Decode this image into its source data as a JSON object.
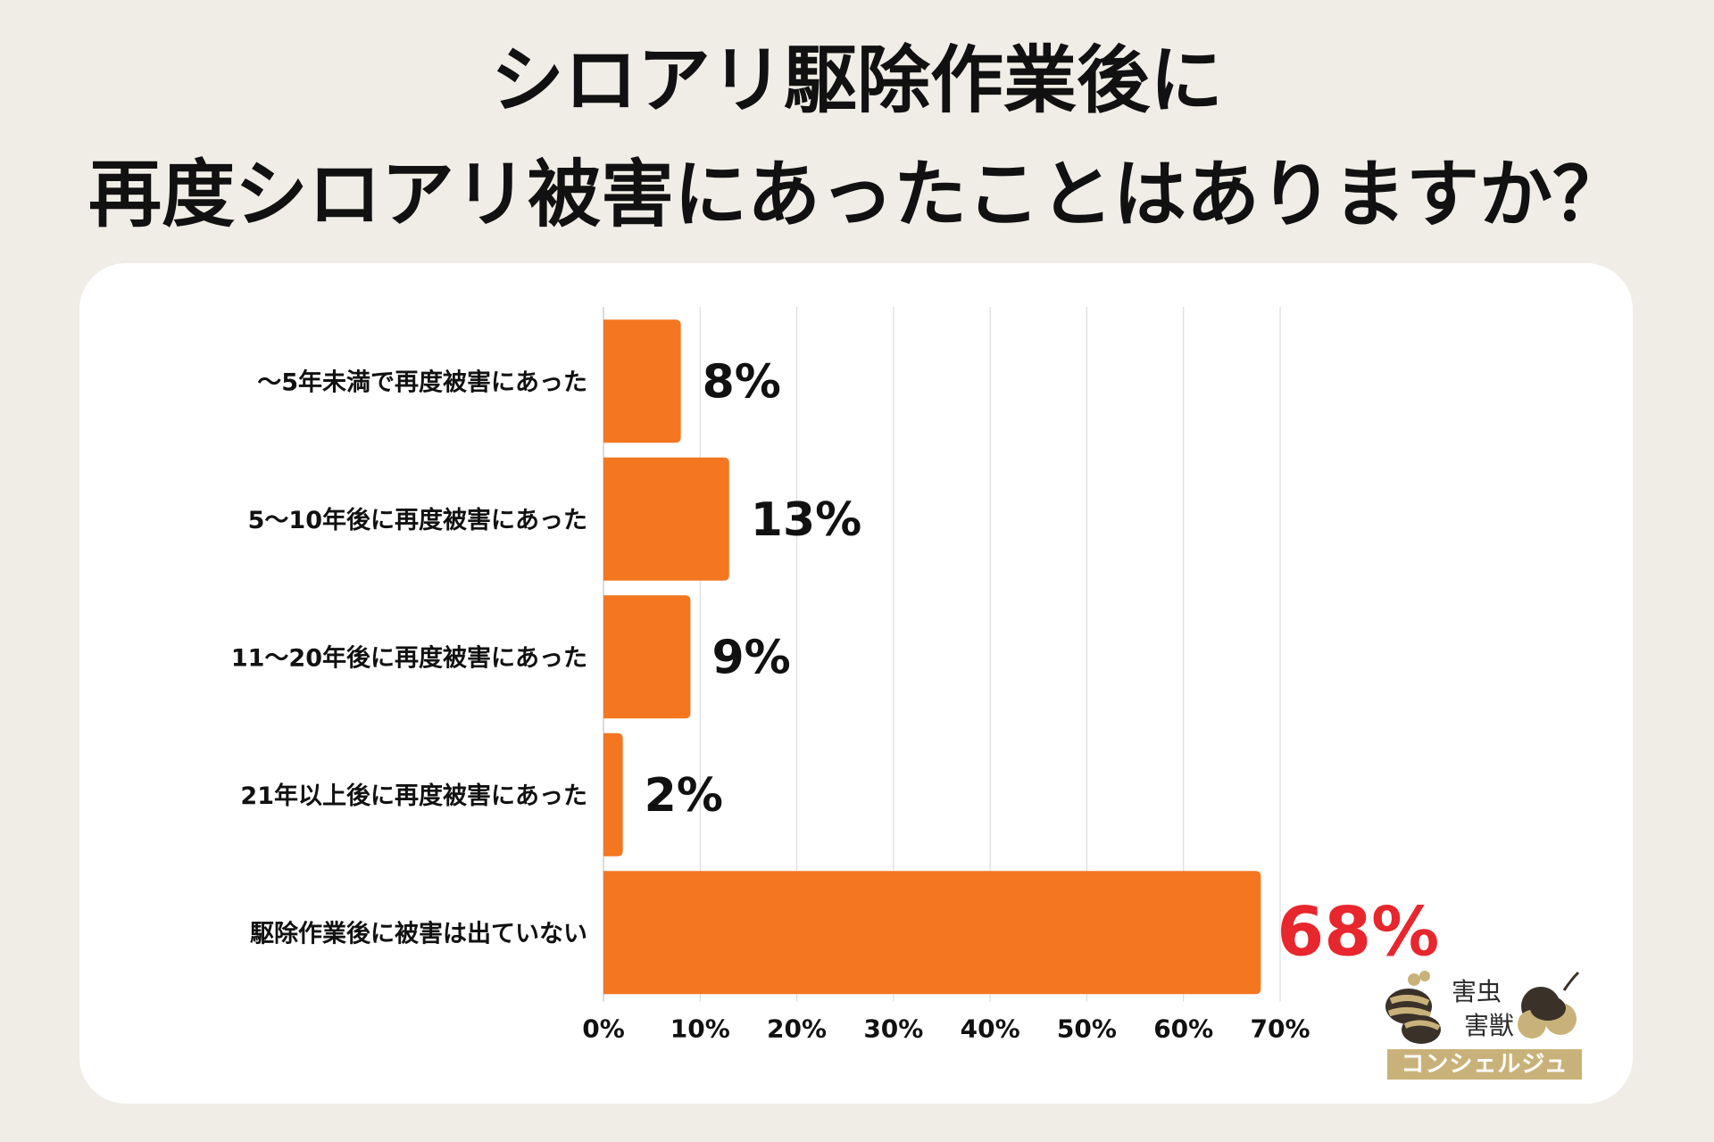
{
  "title": {
    "line1": "シロアリ駆除作業後に",
    "line2": "再度シロアリ被害にあったことはありますか？"
  },
  "logo": {
    "line1": "害虫",
    "line2": "害獣",
    "band": "コンシェルジュ"
  },
  "colors": {
    "background": "#f0ede6",
    "bar": "#f47621",
    "highlight_label": "#e8262d",
    "label": "#111111"
  },
  "chart_data": {
    "type": "bar",
    "orientation": "horizontal",
    "categories": [
      "～5年未満で再度被害にあった",
      "5～10年後に再度被害にあった",
      "11～20年後に再度被害にあった",
      "21年以上後に再度被害にあった",
      "駆除作業後に被害は出ていない"
    ],
    "values": [
      8,
      13,
      9,
      2,
      68
    ],
    "value_labels": [
      "8%",
      "13%",
      "9%",
      "2%",
      "68%"
    ],
    "highlight_index": 4,
    "xlim": [
      0,
      70
    ],
    "xticks": [
      "0%",
      "10%",
      "20%",
      "30%",
      "40%",
      "50%",
      "60%",
      "70%"
    ],
    "grid": true,
    "legend": "none"
  }
}
